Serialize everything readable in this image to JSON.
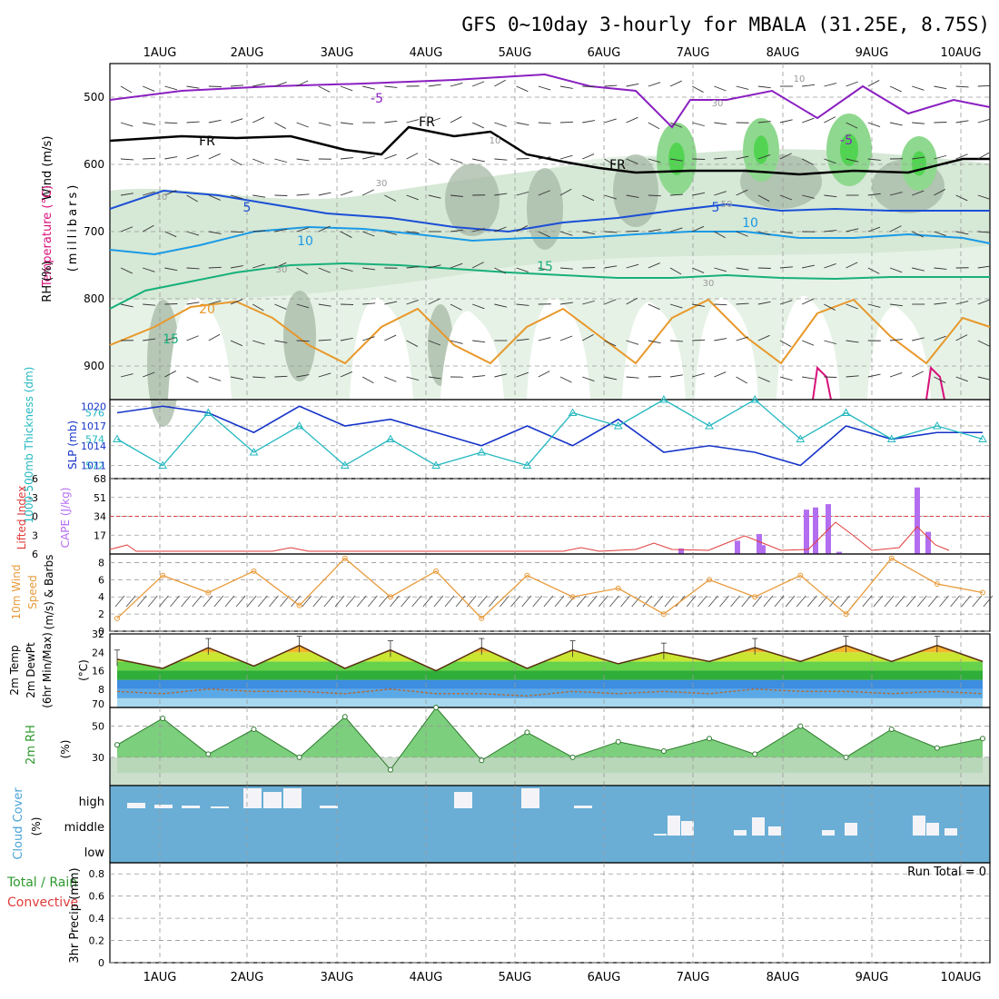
{
  "title": "GFS 0~10day 3-hourly for MBALA (31.25E, 8.75S)",
  "date_labels": [
    "1AUG",
    "2AUG",
    "3AUG",
    "4AUG",
    "5AUG",
    "6AUG",
    "7AUG",
    "8AUG",
    "9AUG",
    "10AUG"
  ],
  "colors": {
    "frame": "#000000",
    "grid": "#9a9a9a",
    "rh_light": "#e6f2e6",
    "rh_mid": "#c9dec9",
    "rh_dark": "#a6b8a6",
    "rh_bright": "#52d452",
    "temp_purple": "#8a1fc0",
    "temp_blue_dark": "#1a4fd6",
    "temp_blue_light": "#1a9ae6",
    "temp_teal": "#17b07a",
    "temp_orange": "#e8982a",
    "temp_magenta": "#d8107a",
    "slp_blue": "#1533c8",
    "thickness_cyan": "#23b8c0",
    "cape_purple": "#b36ef0",
    "lifted_red": "#e03c3c",
    "wind_orange": "#e89a3a",
    "rh2m_green": "#5cc65c",
    "cloud_blue": "#6aaed6",
    "precip_green": "#2e9a2e"
  },
  "panels": {
    "upper": {
      "axis_label": "(millibars)",
      "legend_wind": "Wind (m/s)",
      "legend_temperature": "Temperature (°C)",
      "legend_rh": "RH (%)",
      "y_ticks": [
        "500",
        "600",
        "700",
        "800",
        "900"
      ],
      "contour_labels": [
        {
          "text": "-5",
          "color": "temp_purple"
        },
        {
          "text": "FR",
          "color": "frame"
        },
        {
          "text": "FR",
          "color": "frame"
        },
        {
          "text": "FR",
          "color": "frame"
        },
        {
          "text": "5",
          "color": "temp_blue_dark"
        },
        {
          "text": "5",
          "color": "temp_blue_dark"
        },
        {
          "text": "10",
          "color": "temp_blue_light"
        },
        {
          "text": "10",
          "color": "temp_blue_light"
        },
        {
          "text": "15",
          "color": "temp_teal"
        },
        {
          "text": "15",
          "color": "temp_teal"
        },
        {
          "text": "20",
          "color": "temp_orange"
        },
        {
          "text": "-5",
          "color": "temp_purple"
        },
        {
          "text": "30",
          "color": "grid"
        },
        {
          "text": "10",
          "color": "grid"
        },
        {
          "text": "30",
          "color": "grid"
        },
        {
          "text": "50",
          "color": "grid"
        },
        {
          "text": "10",
          "color": "grid"
        },
        {
          "text": "30",
          "color": "grid"
        },
        {
          "text": "30",
          "color": "grid"
        },
        {
          "text": "10",
          "color": "grid"
        }
      ]
    },
    "slp": {
      "label_thickness": "1000-500mb Thickness (dm)",
      "label_slp": "SLP (mb)",
      "left_ticks": [
        "576",
        "574",
        "572"
      ],
      "right_ticks": [
        "1020",
        "1017",
        "1014",
        "1011"
      ]
    },
    "cape": {
      "label_lifted": "Lifted Index",
      "label_cape": "CAPE (J/kg)",
      "left_ticks": [
        "-6",
        "-3",
        "0",
        "3",
        "6"
      ],
      "right_ticks": [
        "68",
        "51",
        "34",
        "17"
      ]
    },
    "wind10": {
      "label_1": "10m Wind",
      "label_2": "Speed",
      "label_3": "(m/s) & Barbs",
      "ticks": [
        "8",
        "6",
        "4",
        "2",
        "0"
      ]
    },
    "temp2m": {
      "label_1": "2m Temp",
      "label_2": "2m DewPt",
      "label_3": "(6hr Min/Max)",
      "label_4": "(°C)",
      "ticks": [
        "32",
        "24",
        "16",
        "8",
        "70"
      ]
    },
    "rh2m": {
      "label_1": "2m RH",
      "label_2": "(%)",
      "ticks": [
        "50",
        "30"
      ]
    },
    "cloud": {
      "label_1": "Cloud Cover",
      "label_2": "(%)",
      "ticks": [
        "high",
        "middle",
        "low"
      ]
    },
    "precip": {
      "label_1": "3hr Precip (mm)",
      "label_total": "Total / Rain",
      "label_convective": "Convective",
      "run_total": "Run Total = 0",
      "ticks": [
        "0.8",
        "0.6",
        "0.4",
        "0.2",
        "0"
      ]
    }
  },
  "chart_data": [
    {
      "type": "line",
      "title": "SLP (mb)",
      "x": [
        "1AUG 00",
        "1AUG 12",
        "2AUG 00",
        "2AUG 12",
        "3AUG 00",
        "3AUG 12",
        "4AUG 00",
        "4AUG 12",
        "5AUG 00",
        "5AUG 12",
        "6AUG 00",
        "6AUG 12",
        "7AUG 00",
        "7AUG 12",
        "8AUG 00",
        "8AUG 12",
        "9AUG 00",
        "9AUG 12",
        "10AUG 00",
        "10AUG 06"
      ],
      "series": [
        {
          "name": "SLP (mb)",
          "values": [
            1019,
            1020,
            1019,
            1016,
            1020,
            1017,
            1018,
            1016,
            1014,
            1017,
            1014,
            1018,
            1013,
            1014,
            1013,
            1011,
            1017,
            1015,
            1016,
            1016
          ]
        },
        {
          "name": "1000-500mb Thickness (dm)",
          "values": [
            574,
            572,
            576,
            573,
            575,
            572,
            574,
            572,
            573,
            572,
            576,
            575,
            577,
            575,
            577,
            574,
            576,
            574,
            575,
            574
          ]
        }
      ],
      "ylim_left": [
        571,
        577
      ],
      "ylim_right": [
        1009,
        1021
      ]
    },
    {
      "type": "bar",
      "title": "CAPE (J/kg)",
      "categories": [
        "6AUG 21",
        "7AUG 15",
        "7AUG 18",
        "7AUG 21",
        "8AUG 06",
        "8AUG 09",
        "8AUG 12",
        "8AUG 15",
        "9AUG 12",
        "9AUG 15"
      ],
      "values": [
        5,
        12,
        18,
        8,
        40,
        42,
        45,
        2,
        60,
        20
      ],
      "ylim": [
        0,
        68
      ]
    },
    {
      "type": "line",
      "title": "10m Wind Speed (m/s)",
      "x": [
        "1AUG 00",
        "1AUG 12",
        "2AUG 00",
        "2AUG 12",
        "3AUG 00",
        "3AUG 12",
        "4AUG 00",
        "4AUG 12",
        "5AUG 00",
        "5AUG 12",
        "6AUG 00",
        "6AUG 12",
        "7AUG 00",
        "7AUG 12",
        "8AUG 00",
        "8AUG 12",
        "9AUG 00",
        "9AUG 12",
        "10AUG 00",
        "10AUG 06"
      ],
      "values": [
        1.5,
        6.5,
        4.5,
        7.0,
        3.0,
        8.5,
        4.0,
        7.0,
        1.5,
        6.5,
        4.0,
        5.0,
        2.0,
        6.0,
        4.0,
        6.5,
        2.0,
        8.5,
        5.5,
        4.5
      ],
      "ylim": [
        0,
        9
      ]
    },
    {
      "type": "area",
      "title": "2m Temp (°C)",
      "x": [
        "1AUG 00",
        "1AUG 12",
        "2AUG 00",
        "2AUG 12",
        "3AUG 00",
        "3AUG 12",
        "4AUG 00",
        "4AUG 12",
        "5AUG 00",
        "5AUG 12",
        "6AUG 00",
        "6AUG 12",
        "7AUG 00",
        "7AUG 12",
        "8AUG 00",
        "8AUG 12",
        "9AUG 00",
        "9AUG 12",
        "10AUG 00",
        "10AUG 06"
      ],
      "series": [
        {
          "name": "2m Temp",
          "values": [
            21,
            17,
            26,
            18,
            27,
            17,
            25,
            16,
            26,
            17,
            25,
            19,
            24,
            20,
            26,
            20,
            27,
            20,
            27,
            20
          ]
        },
        {
          "name": "2m DewPt",
          "values": [
            7,
            6,
            8,
            7,
            7,
            6,
            8,
            6,
            6,
            5,
            7,
            6,
            7,
            6,
            8,
            7,
            7,
            6,
            7,
            6
          ]
        }
      ],
      "ylim": [
        0,
        32
      ]
    },
    {
      "type": "area",
      "title": "2m RH",
      "x": [
        "1AUG 00",
        "1AUG 12",
        "2AUG 00",
        "2AUG 12",
        "3AUG 00",
        "3AUG 12",
        "4AUG 00",
        "4AUG 12",
        "5AUG 00",
        "5AUG 12",
        "6AUG 00",
        "6AUG 12",
        "7AUG 00",
        "7AUG 12",
        "8AUG 00",
        "8AUG 12",
        "9AUG 00",
        "9AUG 12",
        "10AUG 00",
        "10AUG 06"
      ],
      "values": [
        38,
        55,
        32,
        48,
        30,
        56,
        22,
        62,
        28,
        46,
        30,
        40,
        34,
        42,
        32,
        50,
        30,
        48,
        36,
        42
      ],
      "ylim": [
        20,
        62
      ]
    },
    {
      "type": "bar",
      "title": "3hr Precip (mm)",
      "categories": [],
      "values": [],
      "ylim": [
        0,
        0.9
      ]
    }
  ]
}
